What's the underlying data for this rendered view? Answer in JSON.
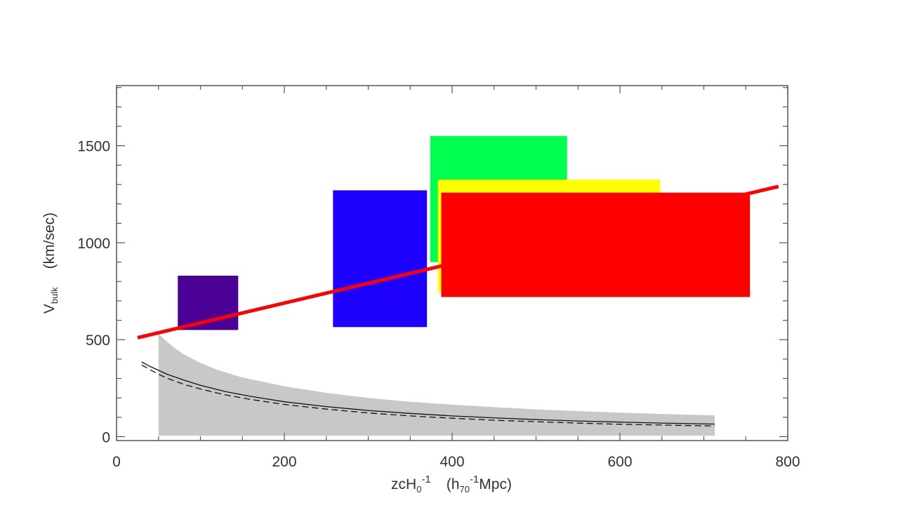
{
  "chart_data": {
    "type": "scatter",
    "title": "",
    "xlabel": {
      "main": "zcH",
      "sub0": "0",
      "sup1": "-1",
      "unit_open": "(h",
      "unit_sub": "70",
      "unit_sup": "-1",
      "unit_close": "Mpc)"
    },
    "ylabel": {
      "main": "V",
      "sub": "bulk",
      "unit": "(km/sec)"
    },
    "xlim": [
      0,
      800
    ],
    "ylim": [
      -20,
      1810
    ],
    "x_ticks": [
      0,
      200,
      400,
      600,
      800
    ],
    "y_ticks": [
      0,
      500,
      1000,
      1500
    ],
    "x_tick_labels": [
      "0",
      "200",
      "400",
      "600",
      "800"
    ],
    "y_tick_labels": [
      "0",
      "500",
      "1000",
      "1500"
    ],
    "x_minor_step": 50,
    "y_minor_step": 100,
    "grid": false,
    "boxes": [
      {
        "name": "purple",
        "color": "#4b0096",
        "x0": 73,
        "x1": 145,
        "y0": 550,
        "y1": 830
      },
      {
        "name": "blue",
        "color": "#1e00ff",
        "x0": 258,
        "x1": 370,
        "y0": 565,
        "y1": 1270
      },
      {
        "name": "green",
        "color": "#00ff50",
        "x0": 374,
        "x1": 537,
        "y0": 900,
        "y1": 1550
      },
      {
        "name": "yellow",
        "color": "#ffff00",
        "x0": 383,
        "x1": 648,
        "y0": 745,
        "y1": 1325
      },
      {
        "name": "red",
        "color": "#ff0000",
        "x0": 387,
        "x1": 755,
        "y0": 720,
        "y1": 1258
      }
    ],
    "trend_line": {
      "color": "#ff0000",
      "x": [
        25,
        789
      ],
      "y": [
        510,
        1290
      ]
    },
    "band": {
      "color": "#c8c8c8",
      "x": [
        50,
        60,
        70,
        80,
        100,
        120,
        150,
        200,
        250,
        300,
        350,
        400,
        450,
        500,
        550,
        600,
        650,
        713
      ],
      "upper": [
        530,
        490,
        455,
        425,
        380,
        345,
        305,
        260,
        226,
        200,
        180,
        165,
        152,
        141,
        132,
        124,
        117,
        110
      ],
      "lower": [
        5,
        5,
        5,
        5,
        5,
        5,
        5,
        5,
        5,
        5,
        5,
        5,
        5,
        5,
        5,
        5,
        5,
        5
      ]
    },
    "series": [
      {
        "style": "solid",
        "x": [
          30,
          40,
          50,
          60,
          80,
          100,
          130,
          160,
          200,
          250,
          300,
          350,
          400,
          450,
          500,
          550,
          600,
          650,
          713
        ],
        "y": [
          385,
          362,
          342,
          322,
          292,
          265,
          232,
          208,
          180,
          155,
          135,
          120,
          107,
          97,
          88,
          81,
          75,
          70,
          65
        ]
      },
      {
        "style": "dashed",
        "x": [
          30,
          40,
          50,
          60,
          80,
          100,
          130,
          160,
          200,
          250,
          300,
          350,
          400,
          450,
          500,
          550,
          600,
          650,
          713
        ],
        "y": [
          370,
          345,
          322,
          302,
          270,
          246,
          215,
          192,
          166,
          142,
          122,
          107,
          95,
          85,
          77,
          70,
          64,
          60,
          55
        ]
      }
    ]
  }
}
